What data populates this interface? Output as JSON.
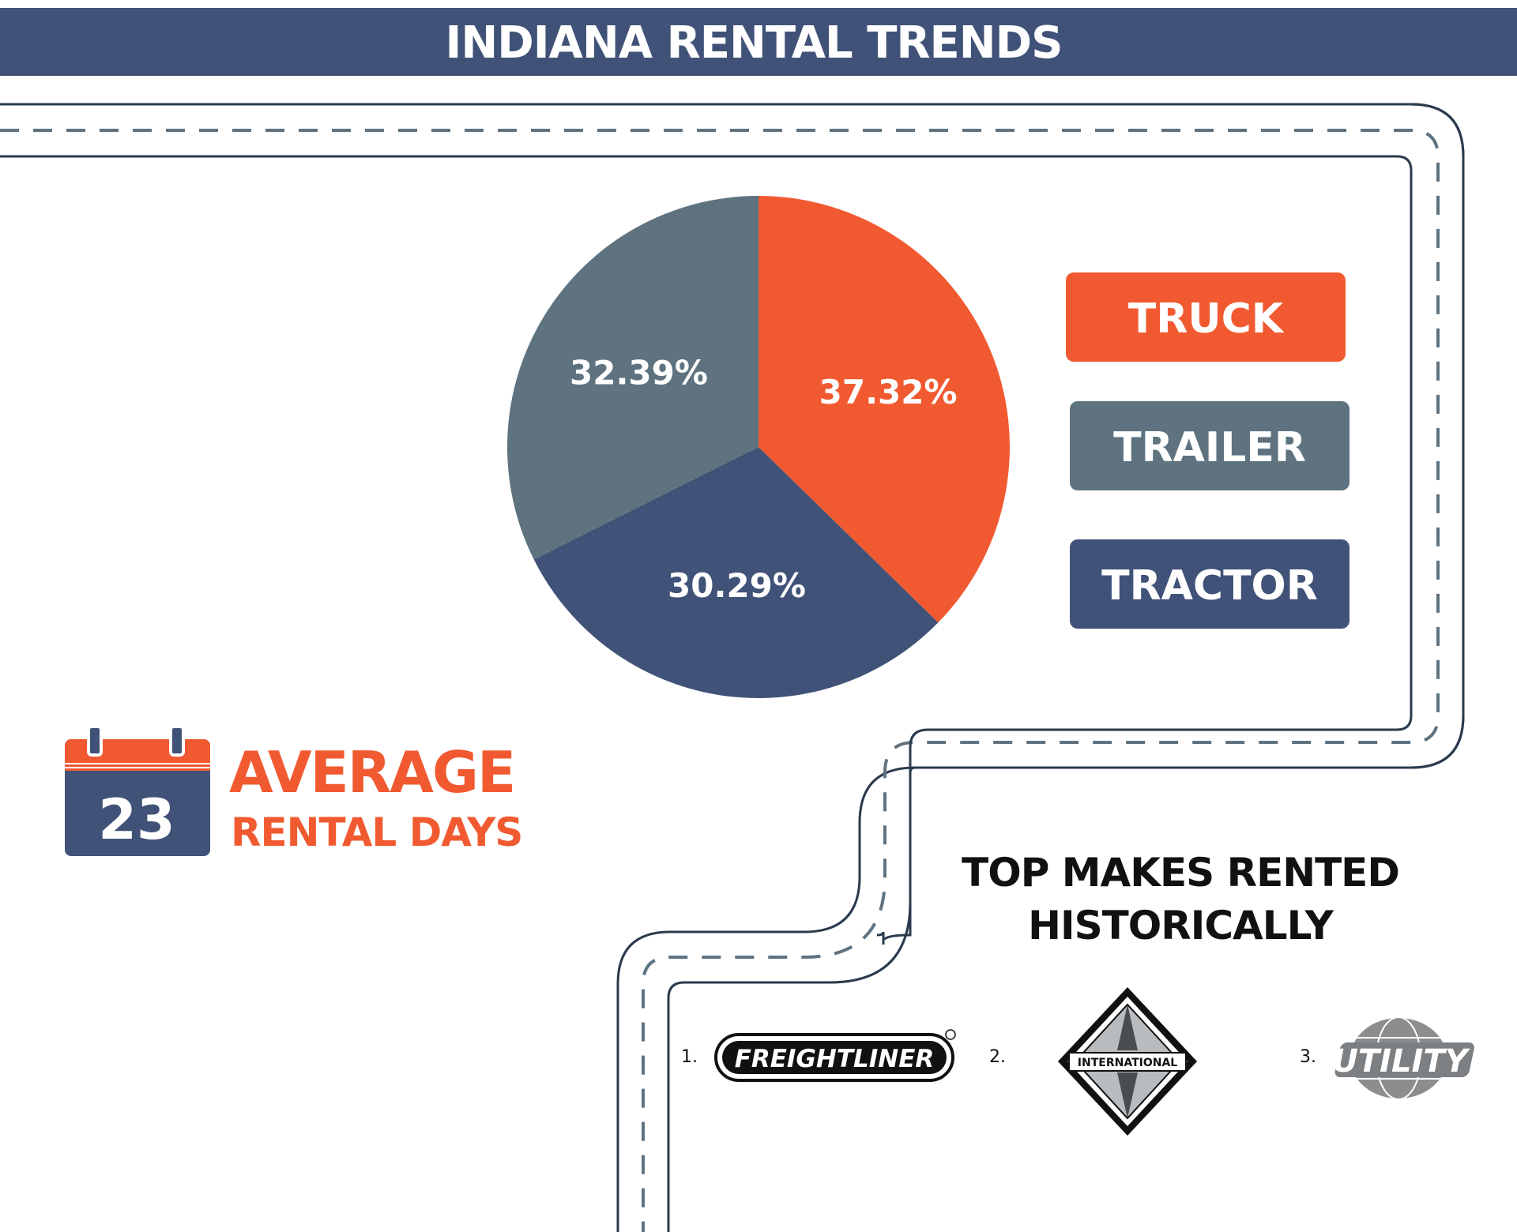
{
  "header": {
    "title": "INDIANA RENTAL TRENDS"
  },
  "colors": {
    "navy": "#415278",
    "orange": "#f15a31",
    "slate": "#5e737f",
    "road": "#2b3a4d"
  },
  "chart_data": {
    "type": "pie",
    "slices": [
      {
        "name": "TRUCK",
        "value": 37.32,
        "label": "37.32%",
        "color": "#f15a31"
      },
      {
        "name": "TRACTOR",
        "value": 30.29,
        "label": "30.29%",
        "color": "#415278"
      },
      {
        "name": "TRAILER",
        "value": 32.39,
        "label": "32.39%",
        "color": "#5e737f"
      }
    ],
    "legend": {
      "placement": "right",
      "items": [
        {
          "label": "TRUCK",
          "color": "#f15a31"
        },
        {
          "label": "TRAILER",
          "color": "#5e737f"
        },
        {
          "label": "TRACTOR",
          "color": "#415278"
        }
      ]
    }
  },
  "average": {
    "days": "23",
    "line1": "AVERAGE",
    "line2": "RENTAL DAYS",
    "icon": "calendar-icon"
  },
  "top_makes": {
    "title_line1": "TOP MAKES RENTED",
    "title_line2": "HISTORICALLY",
    "items": [
      {
        "rank": "1.",
        "name": "FREIGHTLINER",
        "icon": "freightliner-logo"
      },
      {
        "rank": "2.",
        "name": "INTERNATIONAL",
        "icon": "international-logo"
      },
      {
        "rank": "3.",
        "name": "UTILITY",
        "icon": "utility-logo"
      }
    ]
  }
}
